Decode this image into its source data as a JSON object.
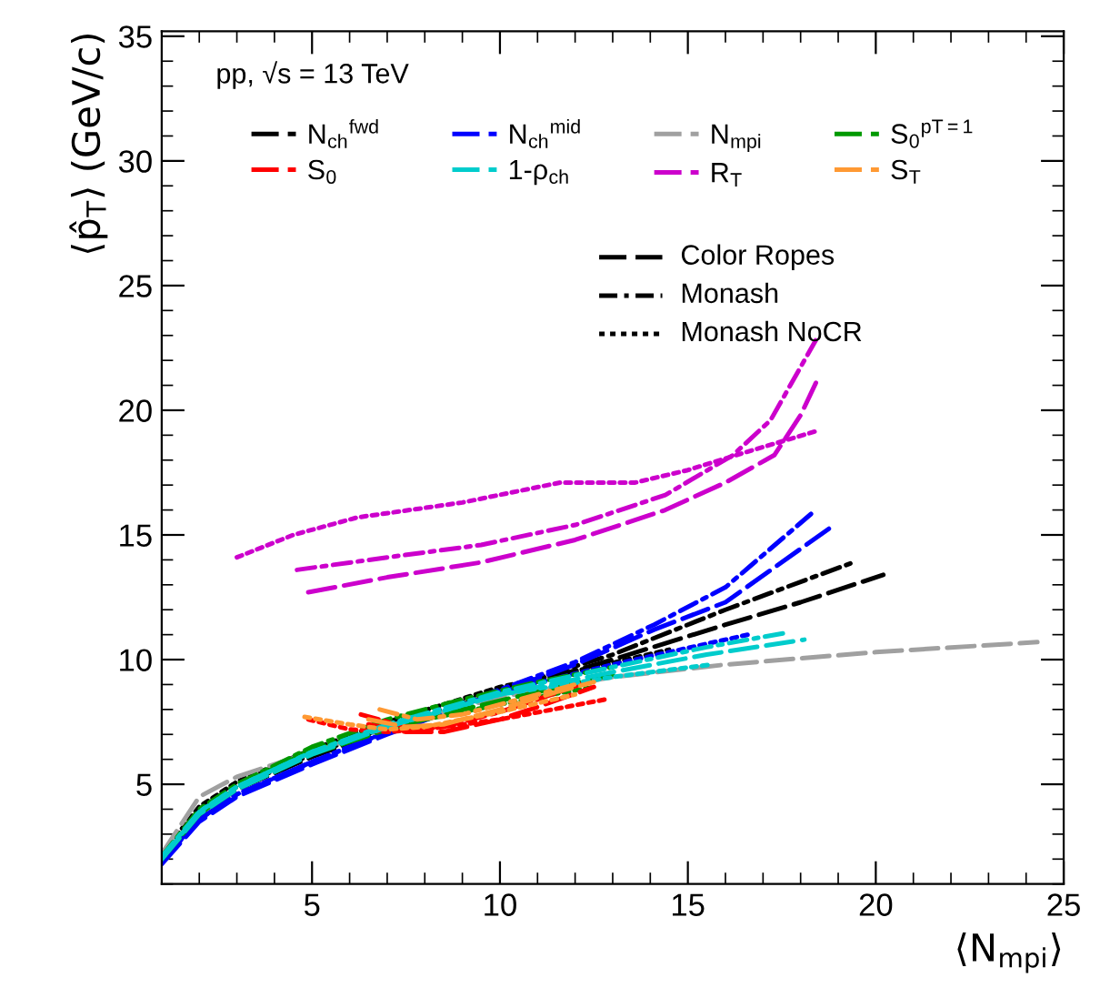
{
  "chart_data": {
    "type": "line",
    "xlabel": "⟨N$_{mpi}$⟩",
    "ylabel": "⟨p̂$_{T}$⟩ (GeV/c)",
    "annotations": [
      "pp, √s = 13 TeV",
      "Color Ropes",
      "Monash",
      "Monash NoCR"
    ],
    "xlim": [
      1,
      25
    ],
    "xticks": [
      5,
      10,
      15,
      20,
      25
    ],
    "ylim": [
      1,
      35.2
    ],
    "yticks": [
      5,
      10,
      15,
      20,
      25,
      30,
      35
    ],
    "grid": false,
    "legend": "top",
    "marker": "none",
    "series": [
      {
        "name": "N$_{ch}$$^{fwd}$",
        "color": "#000000",
        "line_style": "dashed",
        "x": [
          1,
          2,
          3,
          5,
          7,
          10,
          13,
          16,
          18,
          20.2
        ],
        "values": [
          2.0,
          3.8,
          4.8,
          6.1,
          7.2,
          8.7,
          10.0,
          11.4,
          12.3,
          13.4
        ]
      },
      {
        "color": "#000000",
        "line_style": "dashdot",
        "x": [
          1,
          2,
          3,
          5,
          7,
          10,
          13,
          16,
          19.4
        ],
        "values": [
          2.1,
          3.9,
          4.9,
          6.2,
          7.3,
          8.8,
          10.2,
          12.0,
          13.9
        ]
      },
      {
        "color": "#000000",
        "line_style": "dotted",
        "x": [
          1,
          2,
          3,
          5,
          7,
          10,
          12.8,
          14.5
        ],
        "values": [
          2.2,
          4.1,
          5.1,
          6.4,
          7.5,
          8.9,
          9.8,
          10.4
        ]
      },
      {
        "name": "N$_{ch}$$^{mid}$",
        "color": "#0000ff",
        "line_style": "dashed",
        "x": [
          1,
          2,
          3,
          5,
          7,
          10,
          12,
          14.1,
          16,
          18.8
        ],
        "values": [
          1.8,
          3.5,
          4.5,
          5.8,
          7.0,
          8.7,
          9.8,
          11.2,
          12.3,
          15.3
        ]
      },
      {
        "color": "#0000ff",
        "line_style": "dashdot",
        "x": [
          1,
          2,
          3,
          5,
          7,
          10,
          12,
          14.1,
          16,
          18.4
        ],
        "values": [
          1.9,
          3.6,
          4.6,
          5.9,
          7.1,
          8.8,
          9.9,
          11.4,
          12.9,
          16.0
        ]
      },
      {
        "color": "#0000ff",
        "line_style": "dotted",
        "x": [
          1,
          2,
          3,
          5,
          7,
          10,
          13,
          16.6
        ],
        "values": [
          1.9,
          3.6,
          4.6,
          5.9,
          7.1,
          8.7,
          9.8,
          11.0
        ]
      },
      {
        "name": "N$_{mpi}$",
        "color": "#a0a0a0",
        "line_style": "dashed",
        "x": [
          1,
          2,
          3,
          5,
          8,
          10,
          13,
          16,
          20,
          24.3
        ],
        "values": [
          2.2,
          4.5,
          5.3,
          6.3,
          7.7,
          8.5,
          9.3,
          9.8,
          10.3,
          10.7
        ]
      },
      {
        "name": "S$_{0}$$^{pT=1}$",
        "color": "#009900",
        "line_style": "dashed",
        "x": [
          1,
          2,
          3,
          5,
          7,
          9,
          11,
          13
        ],
        "values": [
          2.0,
          3.8,
          4.8,
          6.2,
          7.2,
          8.0,
          8.7,
          9.4
        ]
      },
      {
        "color": "#009900",
        "line_style": "dashdot",
        "x": [
          1,
          2,
          3,
          5,
          7,
          9,
          11,
          13
        ],
        "values": [
          2.1,
          4.0,
          5.0,
          6.5,
          7.6,
          8.4,
          9.1,
          9.7
        ]
      },
      {
        "color": "#009900",
        "line_style": "dotted",
        "x": [
          1,
          2,
          3,
          5,
          7,
          9,
          11,
          12.5
        ],
        "values": [
          2.0,
          3.8,
          4.9,
          6.4,
          7.3,
          7.9,
          8.5,
          8.9
        ]
      },
      {
        "name": "S$_{0}$",
        "color": "#ff0000",
        "line_style": "dashed",
        "x": [
          6.5,
          7.5,
          8.5,
          10,
          11,
          12.5
        ],
        "values": [
          7.4,
          7.1,
          7.1,
          7.6,
          8.1,
          8.9
        ]
      },
      {
        "color": "#ff0000",
        "line_style": "dashdot",
        "x": [
          6.3,
          7.5,
          8.5,
          10,
          11,
          12.5
        ],
        "values": [
          7.8,
          7.3,
          7.3,
          7.9,
          8.4,
          9.2
        ]
      },
      {
        "color": "#ff0000",
        "line_style": "dotted",
        "x": [
          4.9,
          6,
          7,
          8,
          10,
          12.8
        ],
        "values": [
          7.6,
          7.2,
          7.1,
          7.2,
          7.6,
          8.4
        ]
      },
      {
        "name": "1-ρ$_{ch}$",
        "color": "#00cccc",
        "line_style": "dashed",
        "x": [
          1,
          2,
          3,
          5,
          7,
          10,
          13,
          15.5,
          18.1
        ],
        "values": [
          2.0,
          3.8,
          4.8,
          6.2,
          7.3,
          8.6,
          9.5,
          10.2,
          10.8
        ]
      },
      {
        "color": "#00cccc",
        "line_style": "dashdot",
        "x": [
          1,
          2,
          3,
          5,
          7,
          10,
          13,
          15.5,
          17.7
        ],
        "values": [
          2.1,
          3.9,
          4.9,
          6.3,
          7.4,
          8.7,
          9.7,
          10.5,
          11.1
        ]
      },
      {
        "color": "#00cccc",
        "line_style": "dotted",
        "x": [
          1,
          2,
          3,
          5,
          7,
          10,
          13,
          15.6
        ],
        "values": [
          2.0,
          3.9,
          4.9,
          6.3,
          7.3,
          8.6,
          9.3,
          9.8
        ]
      },
      {
        "name": "R$_{T}$",
        "color": "#cc00cc",
        "line_style": "dashed",
        "x": [
          4.9,
          7,
          9.5,
          12,
          14.4,
          16,
          17.3,
          18.0,
          18.5
        ],
        "values": [
          12.7,
          13.3,
          13.9,
          14.8,
          16.0,
          17.1,
          18.2,
          19.8,
          21.4
        ]
      },
      {
        "color": "#cc00cc",
        "line_style": "dashdot",
        "x": [
          4.6,
          7,
          9.5,
          12,
          14.4,
          16.2,
          17.2,
          18.4
        ],
        "values": [
          13.6,
          14.1,
          14.6,
          15.4,
          16.6,
          18.2,
          19.6,
          22.8
        ]
      },
      {
        "color": "#cc00cc",
        "line_style": "dotted",
        "x": [
          3.0,
          4.5,
          6.2,
          9,
          11.6,
          13.6,
          15.0,
          16.5,
          18.5
        ],
        "values": [
          14.1,
          15.0,
          15.7,
          16.3,
          17.1,
          17.1,
          17.6,
          18.3,
          19.2
        ]
      },
      {
        "name": "S$_{T}$",
        "color": "#ff9933",
        "line_style": "dashed",
        "x": [
          6.5,
          7.5,
          8.5,
          10,
          11.5,
          12.5
        ],
        "values": [
          7.6,
          7.3,
          7.4,
          8.0,
          8.7,
          9.1
        ]
      },
      {
        "color": "#ff9933",
        "line_style": "dashdot",
        "x": [
          6.8,
          7.8,
          9,
          10.5,
          12
        ],
        "values": [
          8.0,
          7.6,
          7.8,
          8.4,
          9.0
        ]
      },
      {
        "color": "#ff9933",
        "line_style": "dotted",
        "x": [
          4.8,
          6,
          7,
          8,
          10,
          12
        ],
        "values": [
          7.7,
          7.4,
          7.2,
          7.3,
          7.9,
          8.6
        ]
      }
    ]
  }
}
